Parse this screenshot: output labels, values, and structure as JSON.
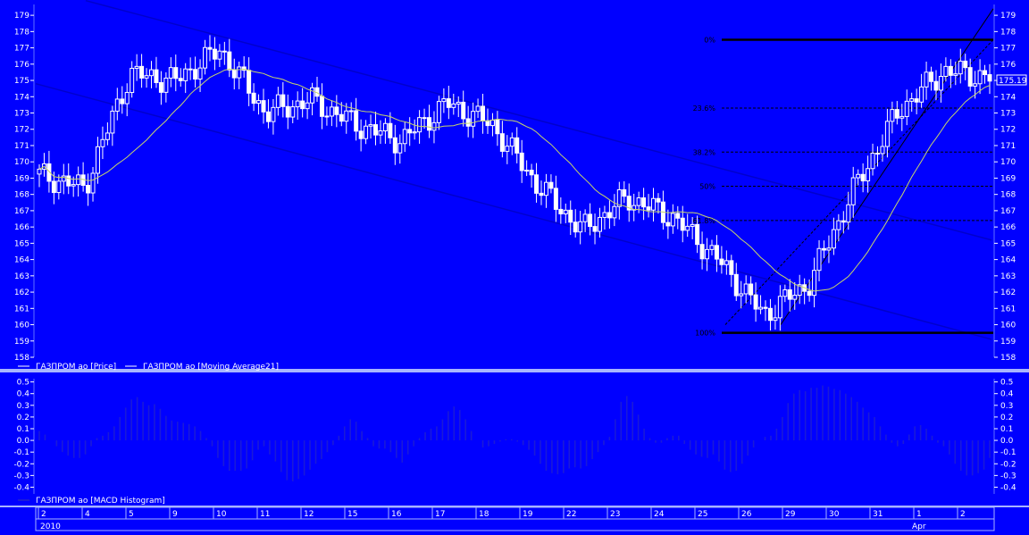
{
  "colors": {
    "background": "#0000ff",
    "channel": "#0000cc",
    "moving_average": "#c8d66a",
    "fib": "#000000",
    "candle": "#ffffff",
    "macd": "#1a1ad8",
    "text": "#ffffff"
  },
  "price_legend": {
    "price": "ГАЗПРОМ ао [Price]",
    "ma": "ГАЗПРОМ ао [Moving Average21]"
  },
  "macd_legend": "ГАЗПРОМ ао [MACD Histogram]",
  "last_price_label": "175.19",
  "date_axis": {
    "day_labels": [
      "2",
      "4",
      "5",
      "9",
      "10",
      "11",
      "12",
      "15",
      "16",
      "17",
      "18",
      "19",
      "22",
      "23",
      "24",
      "25",
      "26",
      "29",
      "30",
      "31",
      "1",
      "2"
    ],
    "year_label": "2010",
    "month_label": "Apr"
  },
  "chart_data": [
    {
      "type": "candlestick",
      "ylim": [
        158,
        179.5
      ],
      "y_ticks": [
        158,
        159,
        160,
        161,
        162,
        163,
        164,
        165,
        166,
        167,
        168,
        169,
        170,
        171,
        172,
        173,
        174,
        175,
        176,
        177,
        178,
        179
      ],
      "fibonacci_levels": [
        {
          "label": "0%",
          "value": 177.5
        },
        {
          "label": "23.6%",
          "value": 173.3
        },
        {
          "label": "38.2%",
          "value": 170.6
        },
        {
          "label": "50%",
          "value": 168.5
        },
        {
          "label": "61.8%",
          "value": 166.4
        },
        {
          "label": "100%",
          "value": 159.5
        }
      ],
      "close_points": [
        {
          "day": "2",
          "close": 169.2
        },
        {
          "day": "4",
          "close": 168.4
        },
        {
          "day": "5",
          "close": 175.4
        },
        {
          "day": "9",
          "close": 175.0
        },
        {
          "day": "10",
          "close": 176.9
        },
        {
          "day": "11",
          "close": 173.0
        },
        {
          "day": "12",
          "close": 173.8
        },
        {
          "day": "15",
          "close": 172.3
        },
        {
          "day": "16",
          "close": 171.3
        },
        {
          "day": "17",
          "close": 173.6
        },
        {
          "day": "18",
          "close": 172.3
        },
        {
          "day": "19",
          "close": 168.6
        },
        {
          "day": "22",
          "close": 165.8
        },
        {
          "day": "23",
          "close": 167.8
        },
        {
          "day": "24",
          "close": 166.6
        },
        {
          "day": "25",
          "close": 164.0
        },
        {
          "day": "26",
          "close": 160.6
        },
        {
          "day": "29",
          "close": 162.5
        },
        {
          "day": "30",
          "close": 168.3
        },
        {
          "day": "31",
          "close": 173.2
        },
        {
          "day": "1",
          "close": 175.6
        },
        {
          "day": "2",
          "close": 175.19
        }
      ]
    },
    {
      "type": "bar",
      "name": "ГАЗПРОМ ао [MACD Histogram]",
      "ylim": [
        -0.45,
        0.52
      ],
      "y_ticks": [
        "0.5",
        "0.4",
        "0.3",
        "0.2",
        "0.1",
        "0.0",
        "-0.1",
        "-0.2",
        "-0.3",
        "-0.4"
      ],
      "values": [
        0.08,
        0.05,
        0.0,
        -0.05,
        -0.1,
        -0.13,
        -0.15,
        -0.15,
        -0.12,
        -0.05,
        0.02,
        0.04,
        0.07,
        0.12,
        0.2,
        0.28,
        0.35,
        0.37,
        0.33,
        0.3,
        0.31,
        0.27,
        0.21,
        0.17,
        0.16,
        0.15,
        0.14,
        0.12,
        0.08,
        0.02,
        -0.05,
        -0.15,
        -0.22,
        -0.26,
        -0.26,
        -0.26,
        -0.24,
        -0.17,
        -0.08,
        -0.05,
        -0.12,
        -0.18,
        -0.27,
        -0.34,
        -0.35,
        -0.33,
        -0.3,
        -0.25,
        -0.2,
        -0.16,
        -0.1,
        -0.04,
        0.04,
        0.12,
        0.18,
        0.16,
        0.08,
        0.02,
        -0.05,
        -0.07,
        -0.07,
        -0.1,
        -0.15,
        -0.19,
        -0.12,
        -0.05,
        0.02,
        0.07,
        0.1,
        0.12,
        0.18,
        0.25,
        0.29,
        0.26,
        0.18,
        0.08,
        0.0,
        -0.06,
        -0.05,
        -0.03,
        -0.01,
        0.01,
        0.01,
        -0.01,
        -0.04,
        -0.08,
        -0.13,
        -0.2,
        -0.26,
        -0.28,
        -0.29,
        -0.28,
        -0.24,
        -0.23,
        -0.24,
        -0.22,
        -0.16,
        -0.1,
        -0.04,
        0.03,
        0.18,
        0.33,
        0.38,
        0.33,
        0.22,
        0.1,
        0.02,
        -0.02,
        -0.02,
        0.02,
        0.04,
        0.04,
        -0.03,
        -0.08,
        -0.12,
        -0.14,
        -0.15,
        -0.12,
        -0.18,
        -0.25,
        -0.27,
        -0.26,
        -0.2,
        -0.13,
        -0.06,
        0.0,
        0.03,
        0.04,
        0.1,
        0.2,
        0.32,
        0.4,
        0.43,
        0.42,
        0.45,
        0.45,
        0.47,
        0.46,
        0.44,
        0.43,
        0.4,
        0.37,
        0.33,
        0.28,
        0.24,
        0.2,
        0.12,
        0.05,
        -0.02,
        -0.05,
        -0.03,
        0.05,
        0.12,
        0.13,
        0.1,
        0.04,
        -0.02,
        -0.05,
        -0.12,
        -0.2,
        -0.26,
        -0.3,
        -0.3,
        -0.28,
        -0.25,
        -0.15
      ]
    }
  ]
}
